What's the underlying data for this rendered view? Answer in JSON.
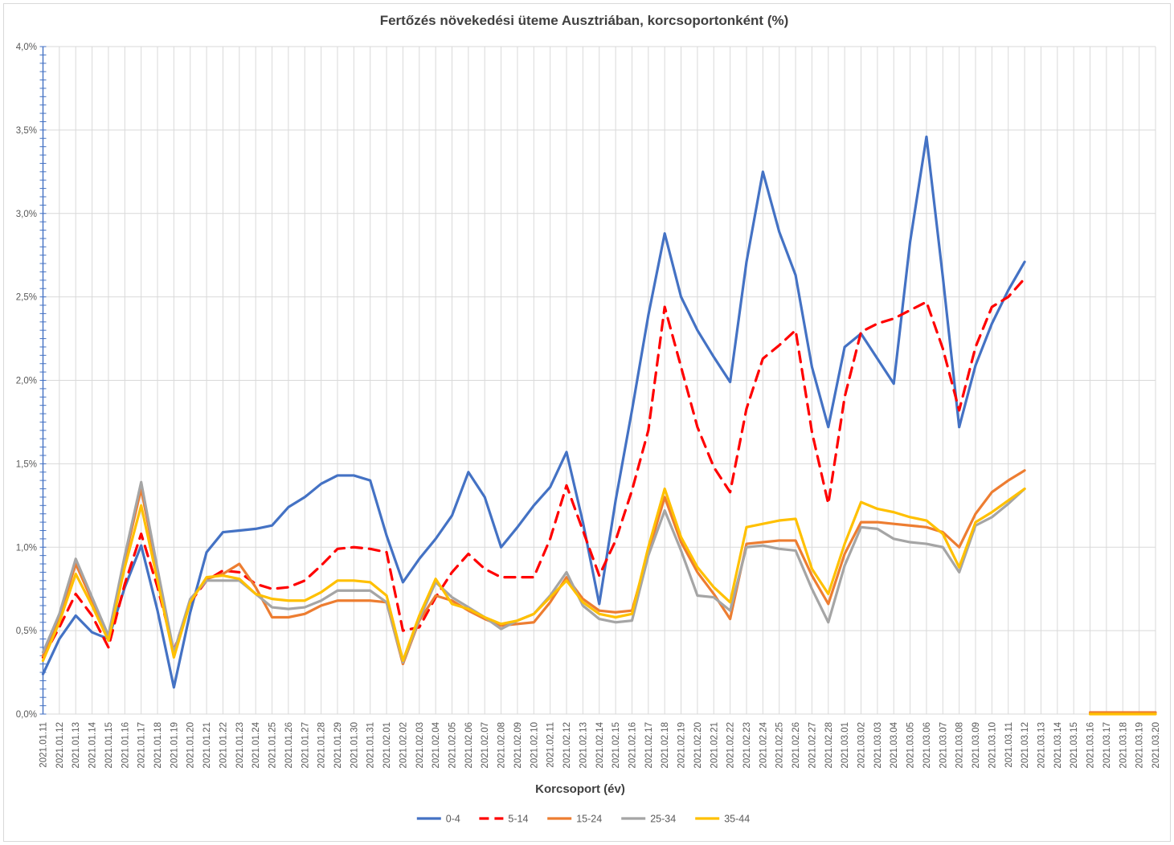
{
  "page": {
    "background": "#FFFFFF",
    "frame_color": "#D9D9D9"
  },
  "chart_data": {
    "type": "line",
    "title": "Fertőzés növekedési üteme Ausztriában, korcsoportonként (%)",
    "xlabel": "Korcsoport (év)",
    "ylabel": "",
    "ylim": [
      0,
      4.0
    ],
    "grid": true,
    "legend_position": "bottom",
    "axis_color": "#4472C4",
    "grid_color": "#D9D9D9",
    "tick_label_color": "#595959",
    "title_color": "#404040",
    "ytick_values": [
      0,
      0.5,
      1.0,
      1.5,
      2.0,
      2.5,
      3.0,
      3.5,
      4.0
    ],
    "ytick_labels": [
      "0,0%",
      "0,5%",
      "1,0%",
      "1,5%",
      "2,0%",
      "2,5%",
      "3,0%",
      "3,5%",
      "4,0%"
    ],
    "minor_tick_step": 0.05,
    "x": [
      "2021.01.11",
      "2021.01.12",
      "2021.01.13",
      "2021.01.14",
      "2021.01.15",
      "2021.01.16",
      "2021.01.17",
      "2021.01.18",
      "2021.01.19",
      "2021.01.20",
      "2021.01.21",
      "2021.01.22",
      "2021.01.23",
      "2021.01.24",
      "2021.01.25",
      "2021.01.26",
      "2021.01.27",
      "2021.01.28",
      "2021.01.29",
      "2021.01.30",
      "2021.01.31",
      "2021.02.01",
      "2021.02.02",
      "2021.02.03",
      "2021.02.04",
      "2021.02.05",
      "2021.02.06",
      "2021.02.07",
      "2021.02.08",
      "2021.02.09",
      "2021.02.10",
      "2021.02.11",
      "2021.02.12",
      "2021.02.13",
      "2021.02.14",
      "2021.02.15",
      "2021.02.16",
      "2021.02.17",
      "2021.02.18",
      "2021.02.19",
      "2021.02.20",
      "2021.02.21",
      "2021.02.22",
      "2021.02.23",
      "2021.02.24",
      "2021.02.25",
      "2021.02.26",
      "2021.02.27",
      "2021.02.28",
      "2021.03.01",
      "2021.03.02",
      "2021.03.03",
      "2021.03.04",
      "2021.03.05",
      "2021.03.06",
      "2021.03.07",
      "2021.03.08",
      "2021.03.09",
      "2021.03.10",
      "2021.03.11",
      "2021.03.12",
      "2021.03.13",
      "2021.03.14",
      "2021.03.15",
      "2021.03.16",
      "2021.03.17",
      "2021.03.18",
      "2021.03.19",
      "2021.03.20"
    ],
    "series": [
      {
        "name": "0-4",
        "color": "#4472C4",
        "dash": "solid",
        "values": [
          0.24,
          0.45,
          0.59,
          0.49,
          0.45,
          0.76,
          1.01,
          0.62,
          0.16,
          0.61,
          0.97,
          1.09,
          1.1,
          1.11,
          1.13,
          1.24,
          1.3,
          1.38,
          1.43,
          1.43,
          1.4,
          1.07,
          0.79,
          0.93,
          1.05,
          1.19,
          1.45,
          1.3,
          1.0,
          1.12,
          1.25,
          1.36,
          1.57,
          1.15,
          0.66,
          1.28,
          1.82,
          2.39,
          2.88,
          2.5,
          2.3,
          2.14,
          1.99,
          2.71,
          3.25,
          2.89,
          2.63,
          2.08,
          1.72,
          2.2,
          2.28,
          2.13,
          1.98,
          2.83,
          3.46,
          2.62,
          1.72,
          2.09,
          2.34,
          2.54,
          2.71,
          null,
          null,
          null,
          null,
          null,
          null,
          null,
          null
        ]
      },
      {
        "name": "5-14",
        "color": "#FF0000",
        "dash": "dashed",
        "values": [
          0.34,
          0.52,
          0.72,
          0.59,
          0.4,
          0.78,
          1.08,
          0.76,
          0.38,
          0.67,
          0.8,
          0.86,
          0.85,
          0.78,
          0.75,
          0.76,
          0.8,
          0.89,
          0.99,
          1.0,
          0.99,
          0.97,
          0.5,
          0.52,
          0.7,
          0.85,
          0.96,
          0.87,
          0.82,
          0.82,
          0.82,
          1.05,
          1.37,
          1.1,
          0.83,
          1.04,
          1.34,
          1.7,
          2.44,
          2.08,
          1.72,
          1.48,
          1.33,
          1.83,
          2.13,
          2.21,
          2.3,
          1.69,
          1.26,
          1.9,
          2.29,
          2.34,
          2.37,
          2.42,
          2.47,
          2.19,
          1.82,
          2.2,
          2.44,
          2.5,
          2.61,
          null,
          null,
          null,
          null,
          null,
          null,
          null,
          null
        ]
      },
      {
        "name": "15-24",
        "color": "#ED7D31",
        "dash": "solid",
        "values": [
          0.35,
          0.58,
          0.9,
          0.68,
          0.46,
          0.93,
          1.35,
          0.85,
          0.36,
          0.68,
          0.81,
          0.84,
          0.9,
          0.76,
          0.58,
          0.58,
          0.6,
          0.65,
          0.68,
          0.68,
          0.68,
          0.67,
          0.3,
          0.56,
          0.71,
          0.68,
          0.62,
          0.57,
          0.53,
          0.54,
          0.55,
          0.67,
          0.82,
          0.69,
          0.62,
          0.61,
          0.62,
          0.97,
          1.3,
          1.03,
          0.85,
          0.72,
          0.57,
          1.02,
          1.03,
          1.04,
          1.04,
          0.83,
          0.66,
          0.96,
          1.15,
          1.15,
          1.14,
          1.13,
          1.12,
          1.09,
          1.0,
          1.2,
          1.33,
          1.4,
          1.46,
          null,
          null,
          null,
          0.01,
          0.01,
          0.01,
          0.01,
          0.01
        ]
      },
      {
        "name": "25-34",
        "color": "#A5A5A5",
        "dash": "solid",
        "values": [
          0.37,
          0.6,
          0.93,
          0.7,
          0.47,
          0.95,
          1.39,
          0.87,
          0.37,
          0.69,
          0.8,
          0.8,
          0.8,
          0.72,
          0.64,
          0.63,
          0.64,
          0.68,
          0.74,
          0.74,
          0.74,
          0.67,
          0.31,
          0.57,
          0.79,
          0.7,
          0.64,
          0.58,
          0.51,
          0.56,
          0.6,
          0.71,
          0.85,
          0.65,
          0.57,
          0.55,
          0.56,
          0.95,
          1.22,
          0.98,
          0.71,
          0.7,
          0.62,
          1.0,
          1.01,
          0.99,
          0.98,
          0.75,
          0.55,
          0.89,
          1.12,
          1.11,
          1.05,
          1.03,
          1.02,
          1.0,
          0.85,
          1.13,
          1.18,
          1.26,
          1.35,
          null,
          null,
          null,
          null,
          null,
          null,
          null,
          null
        ]
      },
      {
        "name": "35-44",
        "color": "#FFC000",
        "dash": "solid",
        "values": [
          0.32,
          0.55,
          0.84,
          0.65,
          0.44,
          0.88,
          1.25,
          0.8,
          0.34,
          0.67,
          0.82,
          0.83,
          0.81,
          0.72,
          0.69,
          0.68,
          0.68,
          0.73,
          0.8,
          0.8,
          0.79,
          0.71,
          0.32,
          0.59,
          0.81,
          0.66,
          0.63,
          0.58,
          0.54,
          0.56,
          0.6,
          0.7,
          0.8,
          0.67,
          0.6,
          0.58,
          0.6,
          1.0,
          1.35,
          1.06,
          0.88,
          0.76,
          0.67,
          1.12,
          1.14,
          1.16,
          1.17,
          0.87,
          0.72,
          1.02,
          1.27,
          1.23,
          1.21,
          1.18,
          1.16,
          1.08,
          0.88,
          1.15,
          1.21,
          1.28,
          1.35,
          null,
          null,
          null,
          0.0,
          0.0,
          0.0,
          0.0,
          0.0
        ]
      }
    ]
  }
}
